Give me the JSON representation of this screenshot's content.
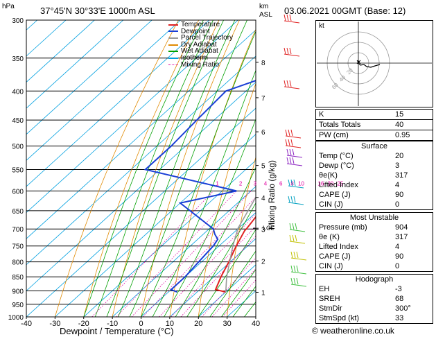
{
  "header": {
    "location": "37°45'N  30°33'E  1000m  ASL",
    "datetime": "03.06.2021  00GMT  (Base: 12)",
    "hpa_label": "hPa",
    "km_label": "km",
    "asl_label": "ASL",
    "footer": "© weatheronline.co.uk"
  },
  "chart_data": {
    "type": "line",
    "subtype": "skew-T log-p diagram",
    "xlabel": "Dewpoint / Temperature (°C)",
    "ylabel": "hPa",
    "right_axis_label": "Mixing Ratio (g/kg)",
    "xlim": [
      -40,
      40
    ],
    "ylim": [
      1000,
      300
    ],
    "x_ticks": [
      -40,
      -30,
      -20,
      -10,
      0,
      10,
      20,
      30,
      40
    ],
    "pressure_ticks": [
      300,
      350,
      400,
      450,
      500,
      550,
      600,
      650,
      700,
      750,
      800,
      850,
      900,
      950,
      1000
    ],
    "km_ticks": [
      {
        "km": "1",
        "p": 905
      },
      {
        "km": "2",
        "p": 797
      },
      {
        "km": "3",
        "p": 701
      },
      {
        "km": "4",
        "p": 616
      },
      {
        "km": "5",
        "p": 541
      },
      {
        "km": "6",
        "p": 472
      },
      {
        "km": "7",
        "p": 411
      },
      {
        "km": "8",
        "p": 356
      }
    ],
    "lcl_label": "LCL",
    "lcl_pressure": 698,
    "mixing_ratio_labels": [
      "1",
      "2",
      "3",
      "4",
      "6",
      "8",
      "10",
      "16",
      "20",
      "25"
    ],
    "mixing_ratio_values": [
      1,
      2,
      3,
      4,
      6,
      8,
      10,
      16,
      20,
      25
    ],
    "legend": [
      {
        "name": "Temperature",
        "color": "#e02020"
      },
      {
        "name": "Dewpoint",
        "color": "#1a3fd6"
      },
      {
        "name": "Parcel Trajectory",
        "color": "#999999"
      },
      {
        "name": "Dry Adiabat",
        "color": "#e08a00"
      },
      {
        "name": "Wet Adiabat",
        "color": "#00a000"
      },
      {
        "name": "Isotherm",
        "color": "#00a0e0"
      },
      {
        "name": "Mixing Ratio",
        "color": "#e000a0"
      }
    ],
    "series": [
      {
        "name": "Temperature",
        "points": [
          {
            "p": 904,
            "t": 20
          },
          {
            "p": 895,
            "t": 15.5
          },
          {
            "p": 850,
            "t": 12.5
          },
          {
            "p": 800,
            "t": 9.5
          },
          {
            "p": 750,
            "t": 6
          },
          {
            "p": 704,
            "t": 3
          },
          {
            "p": 700,
            "t": 3
          },
          {
            "p": 650,
            "t": 1
          },
          {
            "p": 600,
            "t": -3
          },
          {
            "p": 550,
            "t": -6.5
          },
          {
            "p": 500,
            "t": -10
          },
          {
            "p": 450,
            "t": -15.5
          },
          {
            "p": 400,
            "t": -21.5
          },
          {
            "p": 350,
            "t": -29
          },
          {
            "p": 300,
            "t": -37
          }
        ]
      },
      {
        "name": "Dewpoint",
        "points": [
          {
            "p": 904,
            "t": 3
          },
          {
            "p": 895,
            "t": 0
          },
          {
            "p": 850,
            "t": 0
          },
          {
            "p": 800,
            "t": -1
          },
          {
            "p": 750,
            "t": -2
          },
          {
            "p": 730,
            "t": -3
          },
          {
            "p": 715,
            "t": -6
          },
          {
            "p": 700,
            "t": -8.5
          },
          {
            "p": 630,
            "t": -30
          },
          {
            "p": 600,
            "t": -15
          },
          {
            "p": 550,
            "t": -55
          },
          {
            "p": 500,
            "t": -55
          },
          {
            "p": 450,
            "t": -56
          },
          {
            "p": 400,
            "t": -57
          },
          {
            "p": 350,
            "t": -37
          },
          {
            "p": 300,
            "t": -60
          }
        ]
      },
      {
        "name": "Parcel Trajectory",
        "points": [
          {
            "p": 904,
            "t": 20
          },
          {
            "p": 850,
            "t": 14.5
          },
          {
            "p": 800,
            "t": 9.8
          },
          {
            "p": 750,
            "t": 4.8
          },
          {
            "p": 698,
            "t": -0.2
          },
          {
            "p": 650,
            "t": -3.4
          },
          {
            "p": 600,
            "t": -7
          },
          {
            "p": 550,
            "t": -11
          },
          {
            "p": 500,
            "t": -15.8
          },
          {
            "p": 450,
            "t": -21.5
          },
          {
            "p": 400,
            "t": -28.2
          },
          {
            "p": 350,
            "t": -36.3
          },
          {
            "p": 300,
            "t": -46
          }
        ]
      }
    ]
  },
  "hodograph": {
    "label": "kt",
    "ring_labels": [
      "20",
      "40",
      "60"
    ]
  },
  "stats": {
    "top": [
      {
        "label": "K",
        "value": "15"
      },
      {
        "label": "Totals Totals",
        "value": "40"
      },
      {
        "label": "PW (cm)",
        "value": "0.95"
      }
    ],
    "surface": {
      "title": "Surface",
      "rows": [
        {
          "label": "Temp (°C)",
          "value": "20"
        },
        {
          "label": "Dewp (°C)",
          "value": "3"
        },
        {
          "label": "θe(K)",
          "value": "317"
        },
        {
          "label": "Lifted Index",
          "value": "4"
        },
        {
          "label": "CAPE (J)",
          "value": "90"
        },
        {
          "label": "CIN (J)",
          "value": "0"
        }
      ]
    },
    "most_unstable": {
      "title": "Most Unstable",
      "rows": [
        {
          "label": "Pressure (mb)",
          "value": "904"
        },
        {
          "label": "θe (K)",
          "value": "317"
        },
        {
          "label": "Lifted Index",
          "value": "4"
        },
        {
          "label": "CAPE (J)",
          "value": "90"
        },
        {
          "label": "CIN (J)",
          "value": "0"
        }
      ]
    },
    "hodograph": {
      "title": "Hodograph",
      "rows": [
        {
          "label": "EH",
          "value": "-3"
        },
        {
          "label": "SREH",
          "value": "68"
        },
        {
          "label": "StmDir",
          "value": "300°"
        },
        {
          "label": "StmSpd (kt)",
          "value": "33"
        }
      ]
    }
  }
}
